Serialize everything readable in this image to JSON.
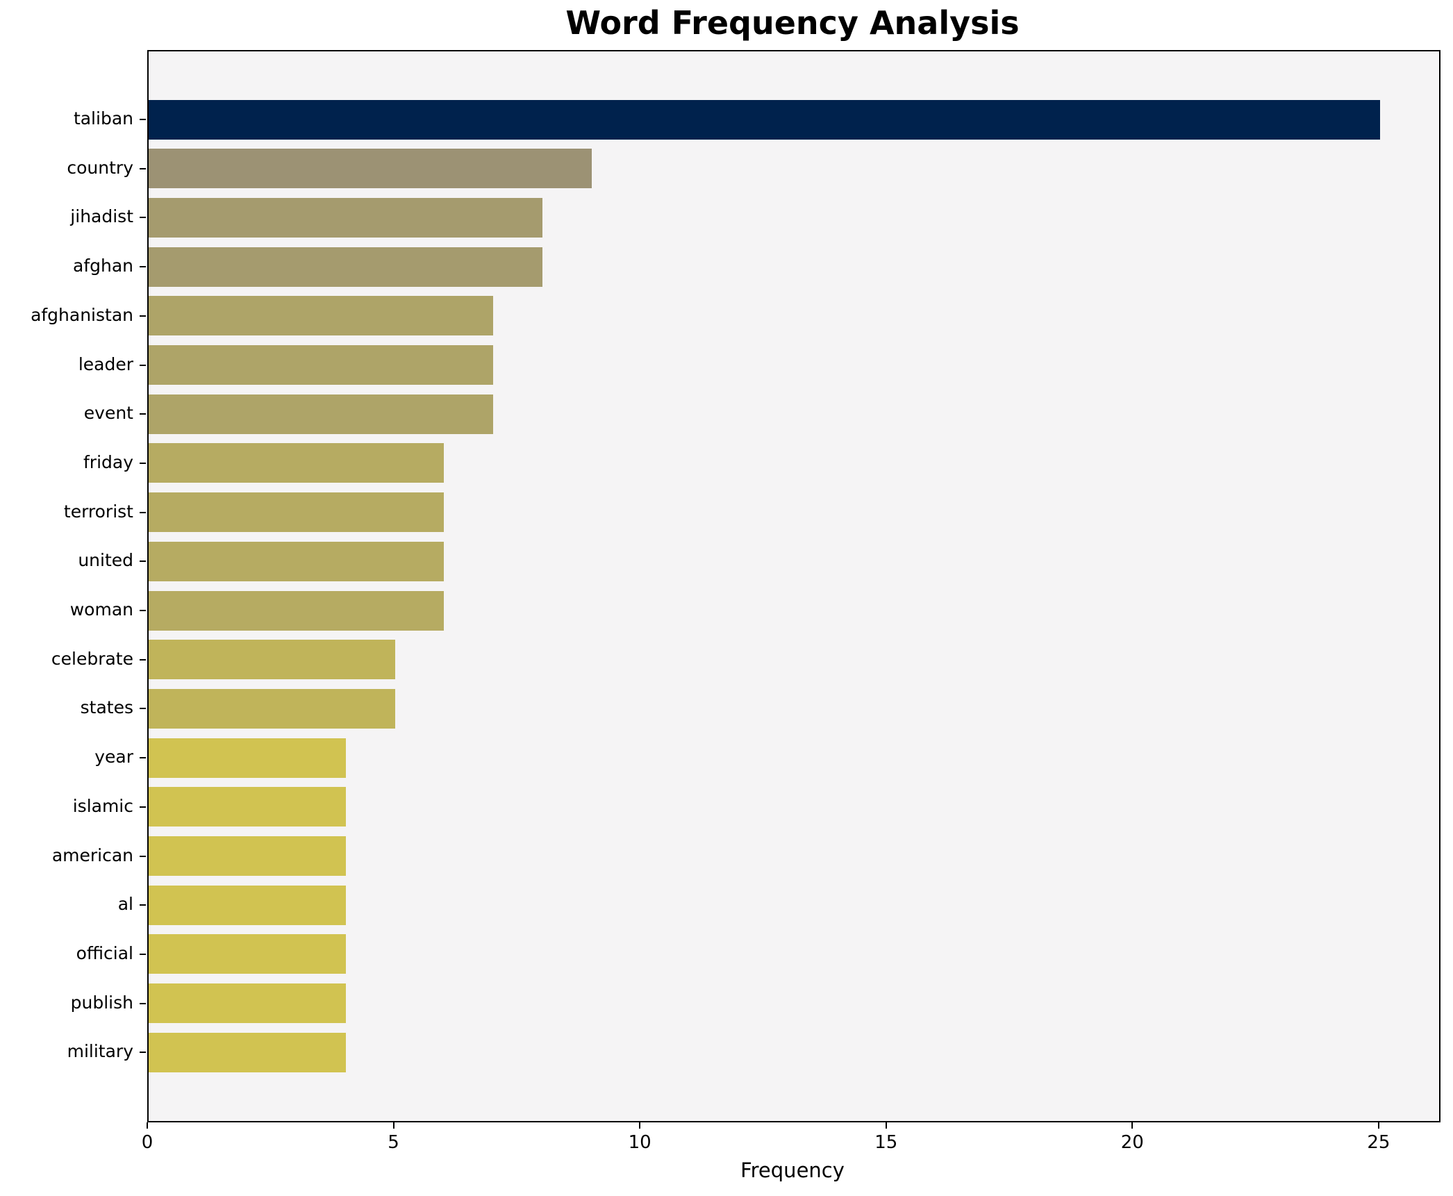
{
  "chart_data": {
    "type": "bar",
    "orientation": "horizontal",
    "title": "Word Frequency Analysis",
    "xlabel": "Frequency",
    "ylabel": "",
    "categories": [
      "taliban",
      "country",
      "jihadist",
      "afghan",
      "afghanistan",
      "leader",
      "event",
      "friday",
      "terrorist",
      "united",
      "woman",
      "celebrate",
      "states",
      "year",
      "islamic",
      "american",
      "al",
      "official",
      "publish",
      "military"
    ],
    "values": [
      25,
      9,
      8,
      8,
      7,
      7,
      7,
      6,
      6,
      6,
      6,
      5,
      5,
      4,
      4,
      4,
      4,
      4,
      4,
      4
    ],
    "bar_colors": [
      "#00224d",
      "#9c9274",
      "#a59b6e",
      "#a59b6e",
      "#aea468",
      "#aea468",
      "#aea468",
      "#b6ab62",
      "#b6ab62",
      "#b6ab62",
      "#b6ab62",
      "#c0b45a",
      "#c0b45a",
      "#d1c351",
      "#d1c351",
      "#d1c351",
      "#d1c351",
      "#d1c351",
      "#d1c351",
      "#d1c351"
    ],
    "xlim": [
      0,
      26.2
    ],
    "xticks": [
      0,
      5,
      10,
      15,
      20,
      25
    ],
    "grid": false,
    "legend": null,
    "plot_background": "#f5f4f5",
    "figure_background": "#ffffff",
    "spine_color": "#000000"
  }
}
